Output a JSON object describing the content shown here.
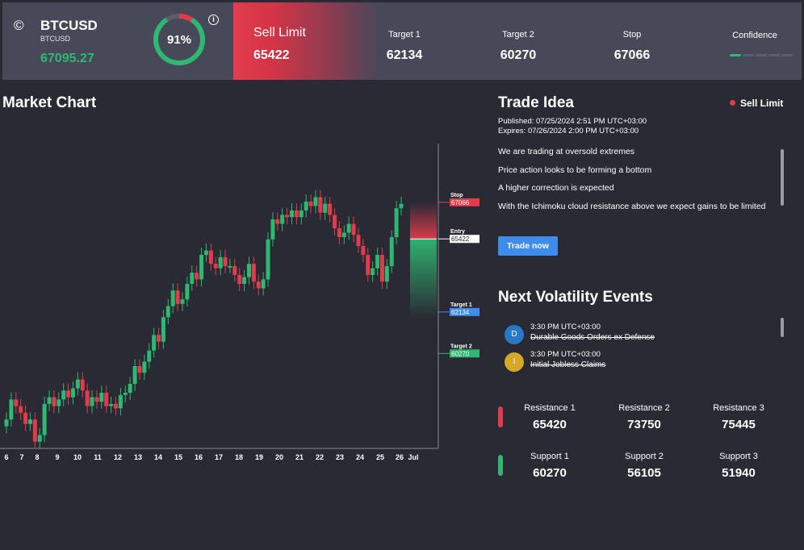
{
  "header": {
    "symbol_icon": "©",
    "symbol": "BTCUSD",
    "symbol_sub": "BTCUSD",
    "price": "67095.27",
    "confidence_gauge_percent": 91,
    "confidence_gauge_label": "91%",
    "info_icon": "i",
    "order_type": "Sell Limit",
    "entry": "65422",
    "target1_label": "Target 1",
    "target1": "62134",
    "target2_label": "Target 2",
    "target2": "60270",
    "stop_label": "Stop",
    "stop": "67066",
    "confidence_label": "Confidence",
    "confidence_level": 1,
    "confidence_max": 5
  },
  "colors": {
    "up": "#2eb872",
    "down": "#e23b4c",
    "accent": "#3d8cee",
    "target_blue": "#3d8cee"
  },
  "market_chart": {
    "title": "Market Chart"
  },
  "chart_data": {
    "type": "candlestick",
    "x_ticks": [
      "6",
      "7",
      "8",
      "9",
      "10",
      "11",
      "12",
      "13",
      "14",
      "15",
      "16",
      "17",
      "18",
      "19",
      "20",
      "21",
      "22",
      "23",
      "24",
      "25",
      "26",
      "Jul"
    ],
    "ylim": [
      56000,
      70000
    ],
    "levels": [
      {
        "label": "Stop",
        "value": 67066,
        "color": "#e23b4c",
        "text": "67066"
      },
      {
        "label": "Entry",
        "value": 65422,
        "color": "#ffffff",
        "text": "65422"
      },
      {
        "label": "Target 1",
        "value": 62134,
        "color": "#3d8cee",
        "text": "62134"
      },
      {
        "label": "Target 2",
        "value": 60270,
        "color": "#2eb872",
        "text": "60270"
      }
    ],
    "closes": [
      57300,
      58200,
      57900,
      57600,
      57100,
      57300,
      56300,
      56600,
      58000,
      58300,
      57900,
      58200,
      58600,
      58300,
      58700,
      59100,
      58600,
      57900,
      58300,
      58100,
      58500,
      57900,
      58000,
      57800,
      58400,
      58500,
      58900,
      59700,
      59400,
      59900,
      60400,
      61100,
      60800,
      61900,
      62400,
      63100,
      62500,
      62700,
      63400,
      63900,
      63600,
      64700,
      64900,
      64300,
      64100,
      64600,
      64200,
      64200,
      63800,
      63400,
      63700,
      64300,
      63500,
      63200,
      63600,
      65400,
      66300,
      66100,
      66500,
      66400,
      66700,
      66400,
      66700,
      67100,
      66900,
      67300,
      66600,
      67000,
      66500,
      65900,
      65500,
      65700,
      66100,
      65600,
      65100,
      64700,
      63800,
      64100,
      64700,
      63500,
      64200,
      65500,
      66800,
      67000
    ]
  },
  "trade_idea": {
    "title": "Trade Idea",
    "badge": "Sell Limit",
    "published": "Published:  07/25/2024 2:51 PM UTC+03:00",
    "expires": "Expires:  07/26/2024 2:00 PM UTC+03:00",
    "bullets": [
      "We are trading at oversold extremes",
      "Price action looks to be forming a bottom",
      "A higher correction is expected",
      "With the Ichimoku cloud resistance above we expect gains to be limited"
    ],
    "button": "Trade now"
  },
  "volatility": {
    "title": "Next Volatility Events",
    "events": [
      {
        "badge": "D",
        "color": "#2978c4",
        "time": "3:30 PM UTC+03:00",
        "name": "Durable Goods Orders ex Defense"
      },
      {
        "badge": "I",
        "color": "#d7a728",
        "time": "3:30 PM UTC+03:00",
        "name": "Initial Jobless Claims"
      }
    ]
  },
  "levels": {
    "resistance": [
      {
        "label": "Resistance 1",
        "value": "65420"
      },
      {
        "label": "Resistance 2",
        "value": "73750"
      },
      {
        "label": "Resistance 3",
        "value": "75445"
      }
    ],
    "support": [
      {
        "label": "Support 1",
        "value": "60270"
      },
      {
        "label": "Support 2",
        "value": "56105"
      },
      {
        "label": "Support 3",
        "value": "51940"
      }
    ]
  }
}
